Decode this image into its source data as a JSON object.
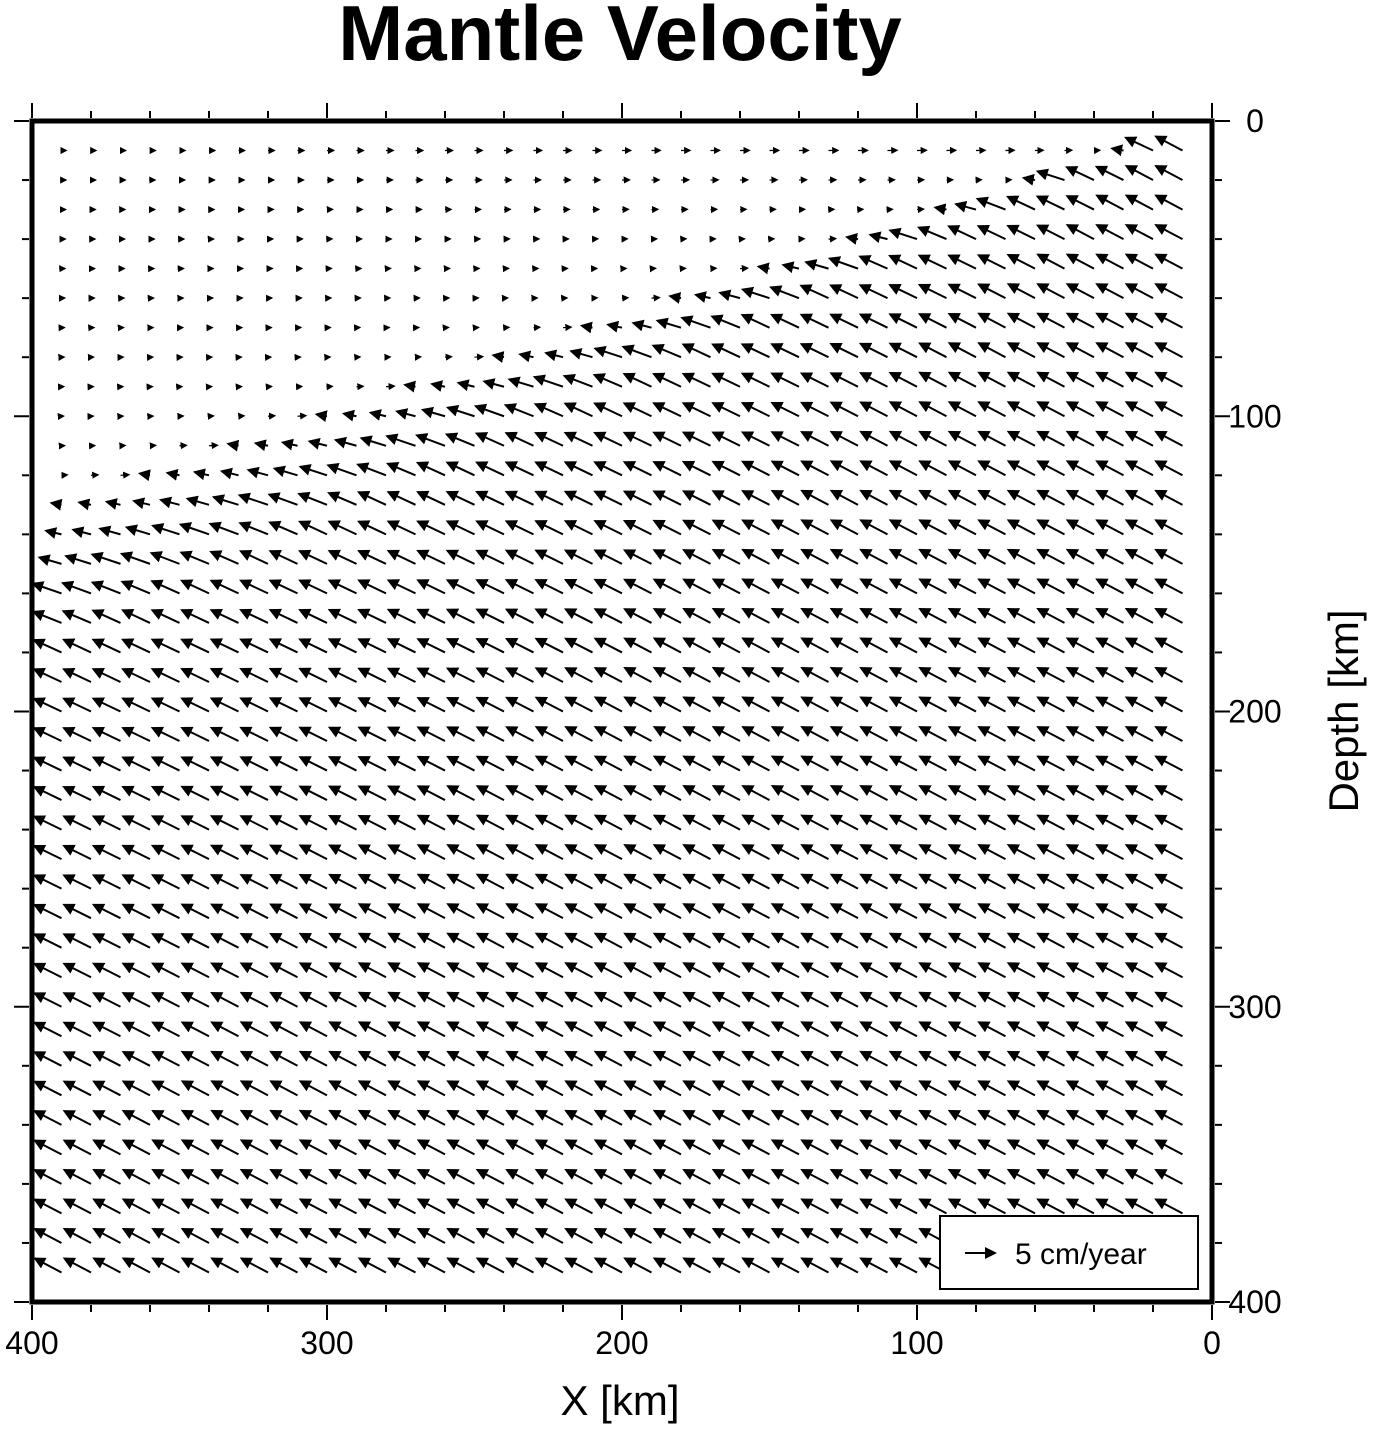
{
  "chart_data": {
    "type": "vector_field",
    "title": "Mantle Velocity",
    "xlabel": "X [km]",
    "ylabel": "Depth [km]",
    "xlim": [
      400,
      0
    ],
    "ylim": [
      0,
      400
    ],
    "x_reversed": true,
    "y_down": true,
    "x_ticks": [
      "400",
      "300",
      "200",
      "100",
      "0"
    ],
    "y_ticks": [
      "0",
      "100",
      "200",
      "300",
      "400"
    ],
    "grid": false,
    "legend": {
      "position": "bottom-right",
      "label": "5 cm/year",
      "reference_speed_cm_per_year": 5
    },
    "field": {
      "x_start_km": 390,
      "x_end_km": 10,
      "x_step_km": 10,
      "depth_start_km": 10,
      "depth_end_km": 395,
      "depth_step_km": 10,
      "description": "corner flow: vectors point toward decreasing depth-to-the-lower-left; slab descends from the top-right corner",
      "dip_deg": 25,
      "max_speed_cm_per_year": 10,
      "stagnant_wedge_apex_km": [
        390,
        140
      ]
    },
    "colors": {
      "frame": "#000000",
      "vector": "#000000",
      "background": "#ffffff"
    }
  }
}
